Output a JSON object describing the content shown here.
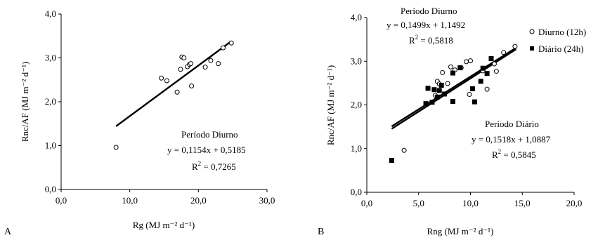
{
  "panels": [
    {
      "letter": "A",
      "xlabel": "Rg (MJ m⁻² d⁻¹)",
      "ylabel": "Rnc/AF (MJ m⁻² d⁻¹)",
      "annotation": {
        "title": "Período Diurno",
        "equation": "y = 0,1154x + 0,5185",
        "r2_label": "R",
        "r2_sup": "2",
        "r2_value": " = 0,7265"
      }
    },
    {
      "letter": "B",
      "xlabel": "Rng (MJ m⁻² d⁻¹)",
      "ylabel": "Rnc/AF (MJ m⁻² d⁻¹)",
      "annotations": [
        {
          "title": "Período Diurno",
          "equation": "y = 0,1499x + 1,1492",
          "r2_label": "R",
          "r2_sup": "2",
          "r2_value": " = 0,5818"
        },
        {
          "title": "Período Diário",
          "equation": "y = 0,1518x + 1,0887",
          "r2_label": "R",
          "r2_sup": "2",
          "r2_value": " = 0,5845"
        }
      ],
      "legend": [
        "Diurno (12h)",
        "Diário (24h)"
      ]
    }
  ],
  "chart_data": [
    {
      "type": "scatter",
      "panel": "A",
      "xlim": [
        0,
        30
      ],
      "ylim": [
        0,
        4
      ],
      "x_ticks": [
        "0,0",
        "10,0",
        "20,0",
        "30,0"
      ],
      "y_ticks": [
        "0,0",
        "1,0",
        "2,0",
        "3,0",
        "4,0"
      ],
      "series": [
        {
          "marker": "open-circle",
          "points": [
            [
              8.0,
              0.96
            ],
            [
              14.6,
              2.54
            ],
            [
              15.4,
              2.48
            ],
            [
              16.9,
              2.22
            ],
            [
              17.4,
              2.74
            ],
            [
              17.6,
              3.02
            ],
            [
              17.9,
              3.0
            ],
            [
              18.4,
              2.8
            ],
            [
              18.7,
              2.85
            ],
            [
              18.9,
              2.87
            ],
            [
              19.0,
              2.36
            ],
            [
              21.0,
              2.79
            ],
            [
              21.8,
              2.94
            ],
            [
              22.9,
              2.87
            ],
            [
              23.6,
              3.23
            ],
            [
              24.8,
              3.34
            ]
          ]
        }
      ],
      "trendlines": [
        {
          "slope": 0.1154,
          "intercept": 0.5185,
          "x_range": [
            8.0,
            24.8
          ]
        }
      ]
    },
    {
      "type": "scatter",
      "panel": "B",
      "xlim": [
        0,
        20
      ],
      "ylim": [
        0,
        4
      ],
      "x_ticks": [
        "0,0",
        "5,0",
        "10,0",
        "15,0",
        "20,0"
      ],
      "y_ticks": [
        "0,0",
        "1,0",
        "2,0",
        "3,0",
        "4,0"
      ],
      "series": [
        {
          "name": "Diurno (12h)",
          "marker": "open-circle",
          "points": [
            [
              3.6,
              0.96
            ],
            [
              6.6,
              2.22
            ],
            [
              6.8,
              2.54
            ],
            [
              7.0,
              2.48
            ],
            [
              7.3,
              2.74
            ],
            [
              7.8,
              2.49
            ],
            [
              8.1,
              2.87
            ],
            [
              8.5,
              2.8
            ],
            [
              9.1,
              2.85
            ],
            [
              9.6,
              2.99
            ],
            [
              9.9,
              2.24
            ],
            [
              10.0,
              3.01
            ],
            [
              11.2,
              2.78
            ],
            [
              11.6,
              2.36
            ],
            [
              12.3,
              2.94
            ],
            [
              12.5,
              2.77
            ],
            [
              13.2,
              3.2
            ],
            [
              14.3,
              3.34
            ]
          ]
        },
        {
          "name": "Diário (24h)",
          "marker": "filled-square",
          "points": [
            [
              2.4,
              0.73
            ],
            [
              5.7,
              2.03
            ],
            [
              5.9,
              2.38
            ],
            [
              6.3,
              2.06
            ],
            [
              6.5,
              2.35
            ],
            [
              6.8,
              2.18
            ],
            [
              7.0,
              2.33
            ],
            [
              7.2,
              2.45
            ],
            [
              7.5,
              2.25
            ],
            [
              8.3,
              2.73
            ],
            [
              8.3,
              2.08
            ],
            [
              9.0,
              2.85
            ],
            [
              10.2,
              2.37
            ],
            [
              10.4,
              2.07
            ],
            [
              11.0,
              2.54
            ],
            [
              11.2,
              2.84
            ],
            [
              11.6,
              2.72
            ],
            [
              12.0,
              3.06
            ]
          ]
        }
      ],
      "trendlines": [
        {
          "slope": 0.1499,
          "intercept": 1.1492,
          "x_range": [
            2.4,
            14.4
          ]
        },
        {
          "slope": 0.1518,
          "intercept": 1.0887,
          "x_range": [
            2.4,
            14.4
          ]
        }
      ]
    }
  ]
}
